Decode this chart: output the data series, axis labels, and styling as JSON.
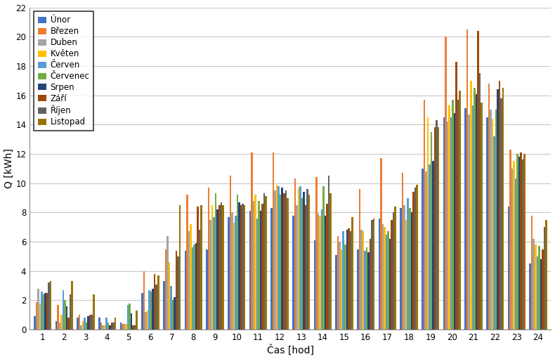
{
  "months": [
    "Únor",
    "Březen",
    "Duben",
    "Květen",
    "Červen",
    "Červenec",
    "Srpen",
    "Září",
    "Říjen",
    "Listopad"
  ],
  "colors": [
    "#4472C4",
    "#ED7D31",
    "#A5A5A5",
    "#FFC000",
    "#5B9BD5",
    "#70AD47",
    "#264478",
    "#9E480E",
    "#636363",
    "#997300"
  ],
  "hours": [
    1,
    2,
    3,
    4,
    5,
    6,
    7,
    8,
    9,
    10,
    11,
    12,
    13,
    14,
    15,
    16,
    17,
    18,
    19,
    20,
    21,
    22,
    23,
    24
  ],
  "data": {
    "Únor": [
      0.9,
      0.6,
      0.8,
      0.8,
      0.5,
      2.5,
      3.3,
      5.4,
      5.5,
      7.7,
      8.1,
      8.3,
      7.8,
      6.1,
      5.1,
      5.5,
      7.6,
      8.3,
      11.0,
      14.5,
      15.1,
      14.5,
      8.4,
      4.5
    ],
    "Březen": [
      1.9,
      1.7,
      1.0,
      0.5,
      0.4,
      4.0,
      5.5,
      9.2,
      9.7,
      10.5,
      12.1,
      12.1,
      10.3,
      10.4,
      6.4,
      9.6,
      11.7,
      10.7,
      15.7,
      20.0,
      20.5,
      16.8,
      12.3,
      7.8
    ],
    "Duben": [
      2.8,
      0.5,
      0.3,
      0.3,
      0.4,
      1.2,
      6.4,
      6.7,
      7.5,
      8.0,
      8.8,
      9.5,
      8.5,
      7.9,
      6.0,
      6.8,
      7.2,
      8.5,
      10.8,
      14.2,
      14.7,
      15.0,
      11.0,
      6.2
    ],
    "Květen": [
      1.8,
      1.0,
      0.6,
      0.3,
      0.4,
      1.3,
      4.6,
      7.2,
      8.5,
      7.3,
      9.2,
      9.9,
      9.7,
      7.8,
      5.5,
      6.7,
      7.0,
      7.5,
      14.5,
      15.3,
      17.0,
      14.4,
      11.5,
      5.8
    ],
    "Červen": [
      2.6,
      2.7,
      0.8,
      0.8,
      1.7,
      2.7,
      3.0,
      5.6,
      7.7,
      7.8,
      7.6,
      9.8,
      9.8,
      8.2,
      6.7,
      5.4,
      6.5,
      9.0,
      11.3,
      14.5,
      15.3,
      13.2,
      10.3,
      5.0
    ],
    "Červenec": [
      2.4,
      2.0,
      0.5,
      0.5,
      1.8,
      2.6,
      2.0,
      5.8,
      9.3,
      9.2,
      8.8,
      9.2,
      9.0,
      9.8,
      5.8,
      5.6,
      6.7,
      8.3,
      13.5,
      15.7,
      16.5,
      15.0,
      12.0,
      5.7
    ],
    "Srpen": [
      2.5,
      1.6,
      0.9,
      0.3,
      1.1,
      2.8,
      2.2,
      5.9,
      8.2,
      8.7,
      8.1,
      9.7,
      9.4,
      7.8,
      6.8,
      5.3,
      6.2,
      8.0,
      11.5,
      14.8,
      16.1,
      16.4,
      11.8,
      4.8
    ],
    "Září": [
      2.5,
      0.8,
      1.0,
      0.5,
      0.3,
      3.8,
      5.4,
      8.4,
      8.5,
      8.5,
      8.6,
      9.3,
      8.5,
      8.6,
      6.9,
      6.2,
      7.5,
      9.4,
      13.8,
      18.3,
      20.4,
      17.0,
      12.1,
      5.5
    ],
    "Říjen": [
      3.2,
      2.4,
      1.0,
      0.5,
      0.3,
      3.1,
      5.0,
      6.8,
      8.7,
      8.6,
      9.3,
      9.5,
      9.6,
      10.5,
      6.7,
      7.5,
      8.0,
      9.7,
      14.3,
      15.7,
      17.5,
      15.8,
      11.6,
      7.0
    ],
    "Listopad": [
      3.3,
      3.3,
      2.4,
      0.8,
      1.3,
      3.7,
      8.5,
      8.5,
      8.5,
      8.5,
      9.1,
      9.0,
      9.2,
      9.3,
      7.7,
      7.6,
      8.4,
      9.9,
      13.8,
      16.3,
      15.5,
      16.5,
      12.0,
      7.5
    ]
  },
  "ylabel": "Q [kWh]",
  "xlabel": "Čas [hod]",
  "ylim": [
    0,
    22
  ],
  "yticks": [
    0,
    2,
    4,
    6,
    8,
    10,
    12,
    14,
    16,
    18,
    20,
    22
  ],
  "bg_color": "#FFFFFF",
  "grid_color": "#C8C8C8",
  "legend_fontsize": 8.5,
  "tick_fontsize": 8.5,
  "axis_fontsize": 10
}
